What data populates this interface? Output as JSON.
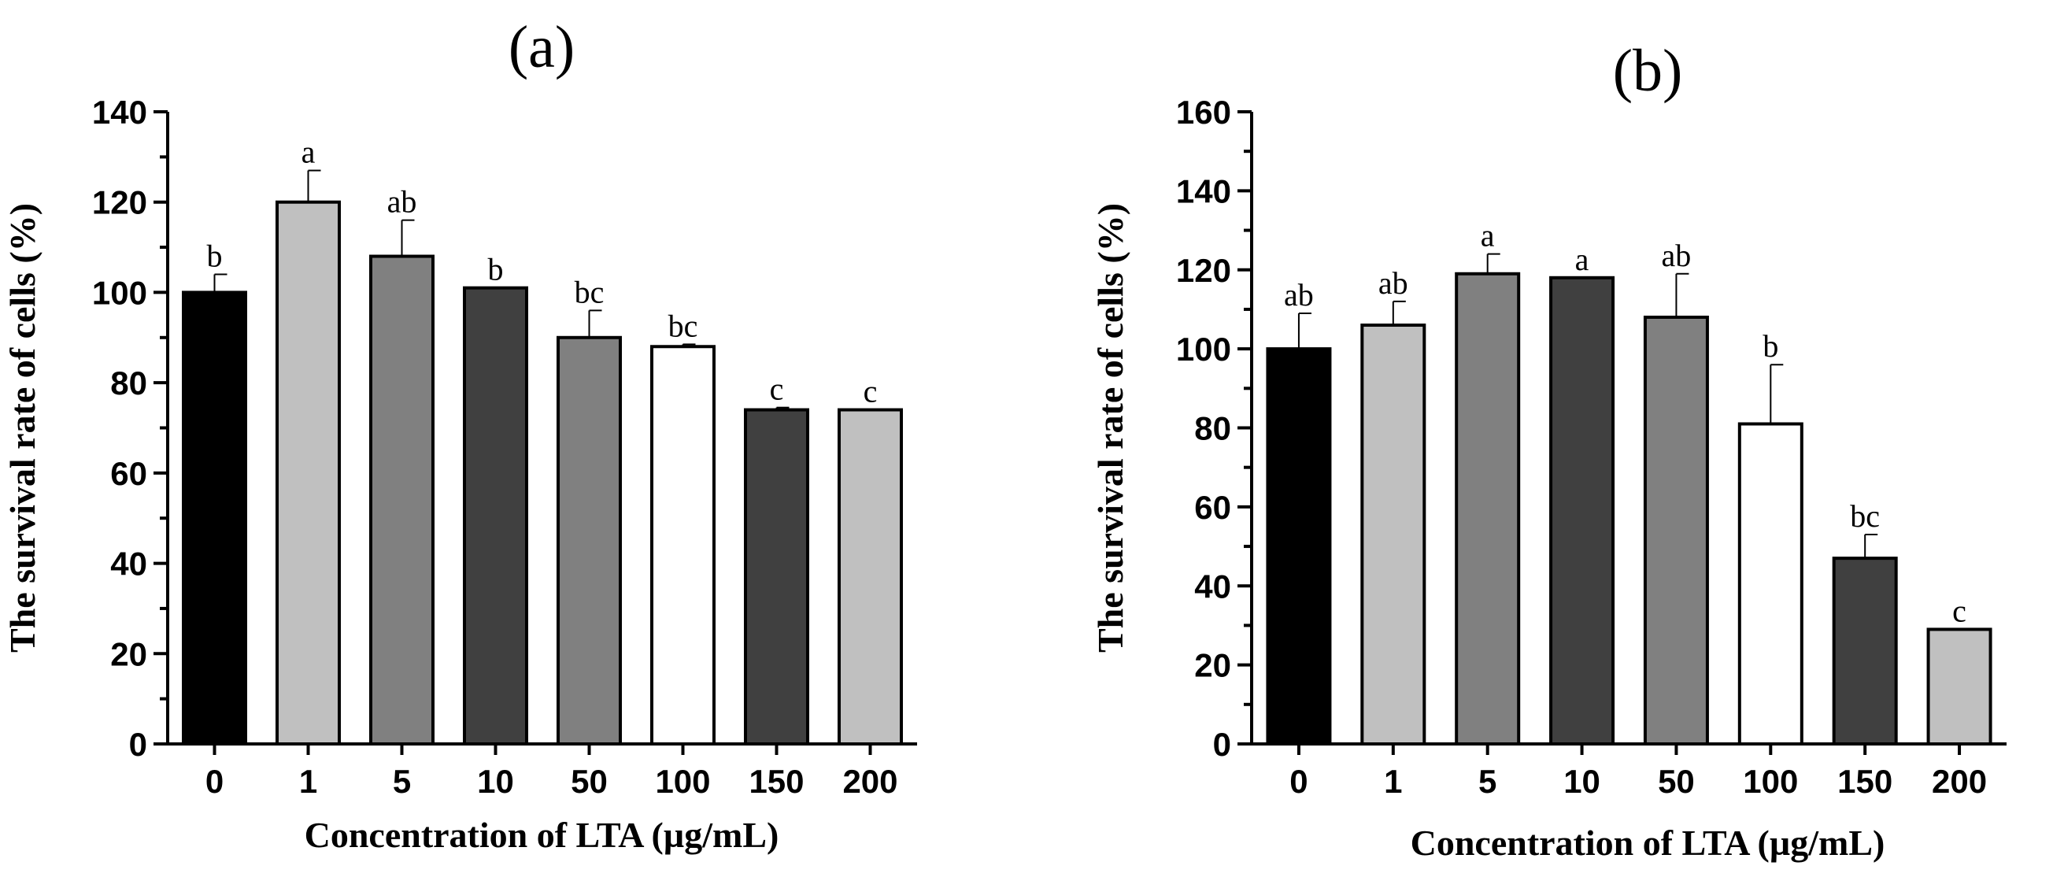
{
  "chart_data": [
    {
      "type": "bar",
      "title": "(a)",
      "xlabel": "Concentration of LTA (µg/mL)",
      "ylabel": "The survival rate of cells (%)",
      "ylim": [
        0,
        140
      ],
      "yticks": [
        0,
        20,
        40,
        60,
        80,
        100,
        120,
        140
      ],
      "categories": [
        "0",
        "1",
        "5",
        "10",
        "50",
        "100",
        "150",
        "200"
      ],
      "values": [
        100,
        120,
        108,
        101,
        90,
        88,
        74,
        74
      ],
      "errors": [
        4,
        7,
        8,
        0,
        6,
        0.5,
        0.5,
        0
      ],
      "significance": [
        "b",
        "a",
        "ab",
        "b",
        "bc",
        "bc",
        "c",
        "c"
      ],
      "bar_colors": [
        "#000000",
        "#c0c0c0",
        "#808080",
        "#404040",
        "#808080",
        "#ffffff",
        "#404040",
        "#c0c0c0"
      ]
    },
    {
      "type": "bar",
      "title": "(b)",
      "xlabel": "Concentration of LTA (µg/mL)",
      "ylabel": "The survival rate of cells (%)",
      "ylim": [
        0,
        160
      ],
      "yticks": [
        0,
        20,
        40,
        60,
        80,
        100,
        120,
        140,
        160
      ],
      "categories": [
        "0",
        "1",
        "5",
        "10",
        "50",
        "100",
        "150",
        "200"
      ],
      "values": [
        100,
        106,
        119,
        118,
        108,
        81,
        47,
        29
      ],
      "errors": [
        9,
        6,
        5,
        0,
        11,
        15,
        6,
        0
      ],
      "significance": [
        "ab",
        "ab",
        "a",
        "a",
        "ab",
        "b",
        "bc",
        "c"
      ],
      "bar_colors": [
        "#000000",
        "#c0c0c0",
        "#808080",
        "#404040",
        "#808080",
        "#ffffff",
        "#404040",
        "#c0c0c0"
      ]
    }
  ]
}
